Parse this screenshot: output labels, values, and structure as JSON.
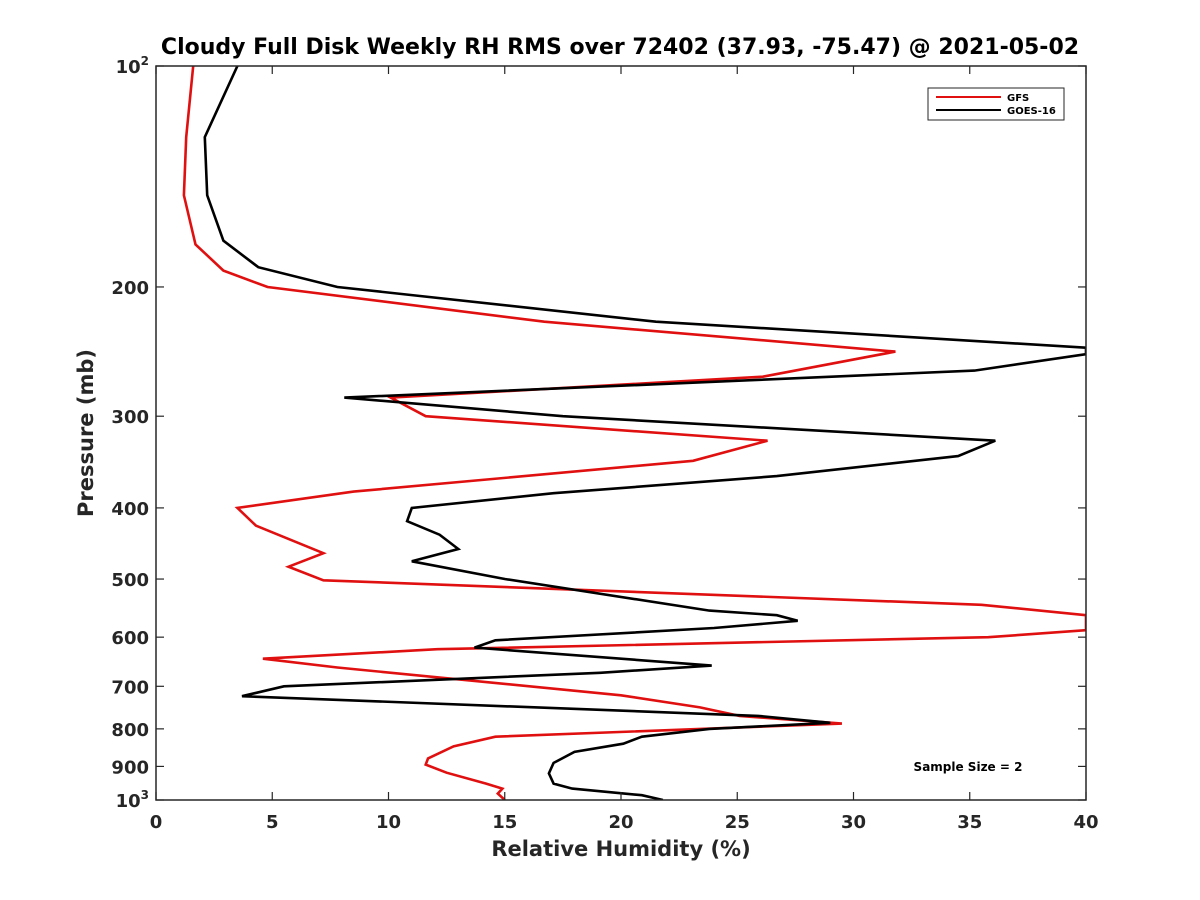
{
  "chart_data": {
    "type": "line",
    "title": "Cloudy Full Disk Weekly RH RMS over 72402 (37.93, -75.47) @ 2021-05-02",
    "xlabel": "Relative Humidity (%)",
    "ylabel": "Pressure (mb)",
    "xlim": [
      0,
      40
    ],
    "ylim": [
      100,
      1000
    ],
    "y_scale": "log",
    "y_reversed": true,
    "x_ticks": [
      "0",
      "5",
      "10",
      "15",
      "20",
      "25",
      "30",
      "35",
      "40"
    ],
    "y_ticks": [
      {
        "value": 100,
        "base": "10",
        "exp": "2"
      },
      {
        "value": 200,
        "label": "200"
      },
      {
        "value": 300,
        "label": "300"
      },
      {
        "value": 400,
        "label": "400"
      },
      {
        "value": 500,
        "label": "500"
      },
      {
        "value": 600,
        "label": "600"
      },
      {
        "value": 700,
        "label": "700"
      },
      {
        "value": 800,
        "label": "800"
      },
      {
        "value": 900,
        "label": "900"
      },
      {
        "value": 1000,
        "base": "10",
        "exp": "3"
      }
    ],
    "grid": false,
    "legend_position": "top-right",
    "annotation": "Sample Size = 2",
    "series": [
      {
        "name": "GFS",
        "color": "#e01010",
        "points": [
          [
            1.6,
            100
          ],
          [
            1.3,
            125
          ],
          [
            1.2,
            150
          ],
          [
            1.7,
            175
          ],
          [
            2.9,
            190
          ],
          [
            4.8,
            200
          ],
          [
            16.7,
            223
          ],
          [
            31.8,
            245
          ],
          [
            26.1,
            265
          ],
          [
            10.1,
            283
          ],
          [
            11.6,
            300
          ],
          [
            26.3,
            324
          ],
          [
            23.1,
            345
          ],
          [
            8.5,
            380
          ],
          [
            3.5,
            400
          ],
          [
            4.3,
            423
          ],
          [
            7.2,
            461
          ],
          [
            5.7,
            481
          ],
          [
            7.2,
            502
          ],
          [
            35.5,
            542
          ],
          [
            40.0,
            560
          ],
          [
            40.0,
            587
          ],
          [
            35.8,
            600
          ],
          [
            12.1,
            623
          ],
          [
            4.6,
            642
          ],
          [
            7.8,
            660
          ],
          [
            20.0,
            720
          ],
          [
            23.4,
            748
          ],
          [
            25.1,
            768
          ],
          [
            29.5,
            787
          ],
          [
            14.6,
            820
          ],
          [
            12.8,
            845
          ],
          [
            11.7,
            878
          ],
          [
            11.6,
            895
          ],
          [
            12.5,
            918
          ],
          [
            14.2,
            950
          ],
          [
            14.9,
            965
          ],
          [
            14.7,
            980
          ],
          [
            15.0,
            1000
          ]
        ]
      },
      {
        "name": "GOES-16",
        "color": "#000000",
        "points": [
          [
            3.5,
            100
          ],
          [
            2.1,
            125
          ],
          [
            2.2,
            150
          ],
          [
            2.9,
            173
          ],
          [
            4.4,
            188
          ],
          [
            7.8,
            200
          ],
          [
            21.5,
            223
          ],
          [
            40.0,
            242
          ],
          [
            40.0,
            247
          ],
          [
            35.2,
            260
          ],
          [
            8.1,
            283
          ],
          [
            17.5,
            300
          ],
          [
            36.1,
            324
          ],
          [
            34.5,
            340
          ],
          [
            26.7,
            362
          ],
          [
            17.1,
            382
          ],
          [
            11.0,
            400
          ],
          [
            10.8,
            417
          ],
          [
            12.2,
            435
          ],
          [
            13.0,
            455
          ],
          [
            11.0,
            473
          ],
          [
            15.0,
            500
          ],
          [
            23.8,
            552
          ],
          [
            26.7,
            560
          ],
          [
            27.6,
            570
          ],
          [
            24.0,
            583
          ],
          [
            14.6,
            606
          ],
          [
            13.7,
            620
          ],
          [
            23.9,
            656
          ],
          [
            19.1,
            671
          ],
          [
            5.5,
            700
          ],
          [
            3.7,
            722
          ],
          [
            25.9,
            768
          ],
          [
            29.0,
            785
          ],
          [
            23.8,
            800
          ],
          [
            20.9,
            820
          ],
          [
            20.1,
            838
          ],
          [
            18.0,
            860
          ],
          [
            17.1,
            890
          ],
          [
            16.9,
            920
          ],
          [
            17.1,
            950
          ],
          [
            17.9,
            965
          ],
          [
            20.9,
            985
          ],
          [
            21.8,
            1000
          ]
        ]
      }
    ]
  }
}
